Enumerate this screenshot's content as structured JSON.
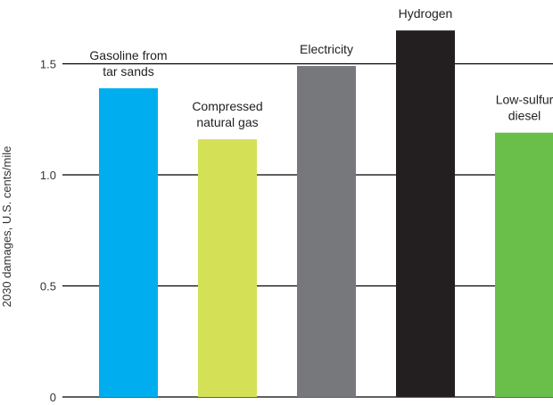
{
  "chart_data": {
    "type": "bar",
    "title": "",
    "xlabel": "",
    "ylabel": "2030 damages, U.S. cents/mile",
    "ylim": [
      0,
      1.7
    ],
    "yticks": [
      {
        "value": 0,
        "label": "0"
      },
      {
        "value": 0.5,
        "label": "0.5"
      },
      {
        "value": 1.0,
        "label": "1.0"
      },
      {
        "value": 1.5,
        "label": "1.5"
      }
    ],
    "grid": true,
    "categories": [
      {
        "lines": [
          "Gasoline from",
          "tar sands"
        ]
      },
      {
        "lines": [
          "Compressed",
          "natural gas"
        ]
      },
      {
        "lines": [
          "Electricity"
        ]
      },
      {
        "lines": [
          "Hydrogen"
        ]
      },
      {
        "lines": [
          "Low-sulfur",
          "diesel"
        ]
      }
    ],
    "values": [
      1.39,
      1.16,
      1.49,
      1.65,
      1.19
    ],
    "colors": [
      "#00aeef",
      "#d4e157",
      "#77787b",
      "#231f20",
      "#6abf4b"
    ]
  }
}
